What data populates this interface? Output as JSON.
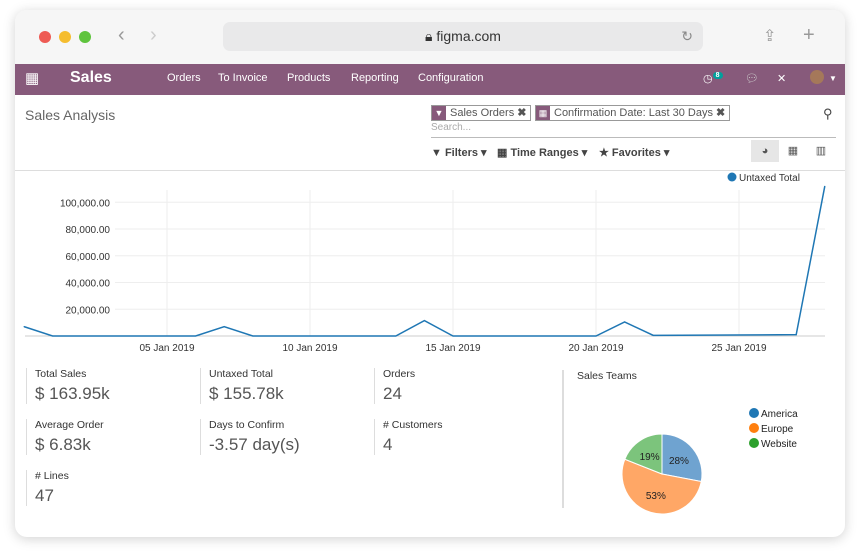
{
  "browser": {
    "url": "figma.com"
  },
  "nav": {
    "app": "Sales",
    "menu": [
      "Orders",
      "To Invoice",
      "Products",
      "Reporting",
      "Configuration"
    ],
    "activity_badge": "8",
    "accent": "#875a7b"
  },
  "control_panel": {
    "title": "Sales Analysis",
    "facets": [
      "Sales Orders",
      "Confirmation Date: Last 30 Days"
    ],
    "search_placeholder": "Search...",
    "filters": "Filters",
    "time_ranges": "Time Ranges",
    "favorites": "Favorites"
  },
  "kpis": [
    {
      "label": "Total Sales",
      "value": "$ 163.95k"
    },
    {
      "label": "Untaxed Total",
      "value": "$ 155.78k"
    },
    {
      "label": "Orders",
      "value": "24"
    },
    {
      "label": "Average Order",
      "value": "$ 6.83k"
    },
    {
      "label": "Days to Confirm",
      "value": "-3.57 day(s)"
    },
    {
      "label": "# Customers",
      "value": "4"
    },
    {
      "label": "# Lines",
      "value": "47"
    }
  ],
  "chart_data": [
    {
      "type": "line",
      "series": [
        {
          "name": "Untaxed Total",
          "color": "#1f77b4",
          "x": [
            "31 Dec 2018",
            "01 Jan 2019",
            "06 Jan 2019",
            "07 Jan 2019",
            "08 Jan 2019",
            "13 Jan 2019",
            "14 Jan 2019",
            "15 Jan 2019",
            "20 Jan 2019",
            "21 Jan 2019",
            "22 Jan 2019",
            "27 Jan 2019",
            "28 Jan 2019"
          ],
          "y": [
            7000,
            0,
            0,
            7000,
            0,
            0,
            11500,
            0,
            0,
            10500,
            500,
            1000,
            112000
          ]
        }
      ],
      "x_ticks": [
        "05 Jan 2019",
        "10 Jan 2019",
        "15 Jan 2019",
        "20 Jan 2019",
        "25 Jan 2019"
      ],
      "y_ticks": [
        "20,000.00",
        "40,000.00",
        "60,000.00",
        "80,000.00",
        "100,000.00"
      ],
      "ylim": [
        0,
        112000
      ],
      "grid": true,
      "legend": "top-right"
    },
    {
      "type": "pie",
      "title": "Sales Teams",
      "slices": [
        {
          "label": "America",
          "value": 28,
          "color": "#1f77b4",
          "fill": "#6fa3d0"
        },
        {
          "label": "Europe",
          "value": 53,
          "color": "#ff7f0e",
          "fill": "#ffa766"
        },
        {
          "label": "Website",
          "value": 19,
          "color": "#2ca02c",
          "fill": "#7cc47c"
        }
      ],
      "legend": "right"
    }
  ]
}
